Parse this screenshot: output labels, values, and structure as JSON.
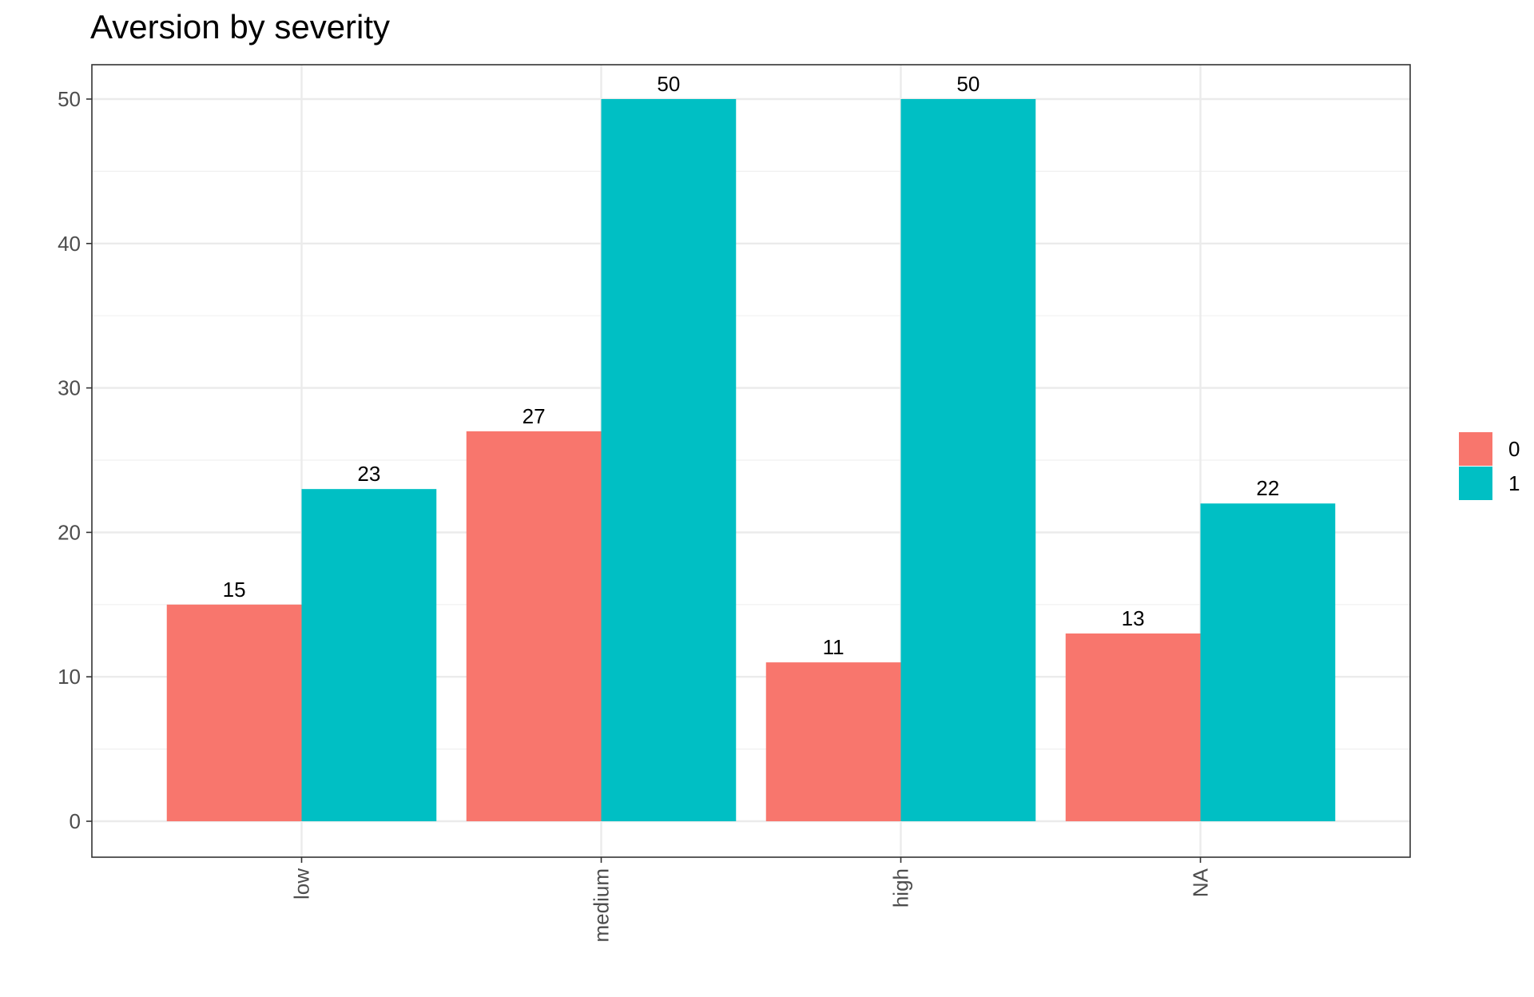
{
  "chart_data": {
    "type": "bar",
    "title": "Aversion by severity",
    "xlabel": "",
    "ylabel": "",
    "categories": [
      "low",
      "medium",
      "high",
      "NA"
    ],
    "series": [
      {
        "name": "0",
        "color": "#F8766D",
        "values": [
          15,
          27,
          11,
          13
        ]
      },
      {
        "name": "1",
        "color": "#00BFC4",
        "values": [
          23,
          50,
          50,
          22
        ]
      }
    ],
    "ylim": [
      0,
      52.5
    ],
    "yticks": [
      0,
      10,
      20,
      30,
      40,
      50
    ],
    "x_tick_rotation": "vertical",
    "grid": true,
    "legend_position": "right",
    "data_labels": true
  }
}
